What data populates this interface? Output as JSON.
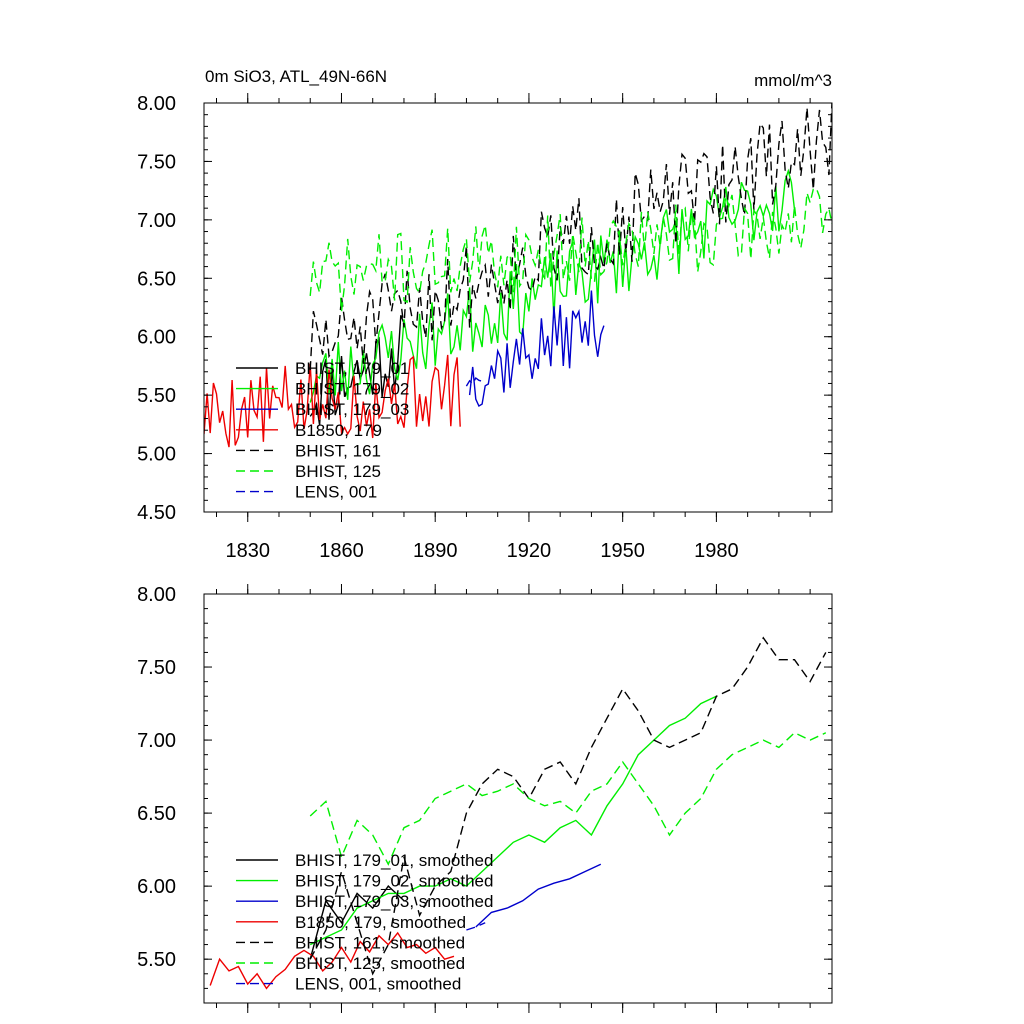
{
  "chart_data": [
    {
      "type": "line",
      "panel": "top",
      "title_left": "0m SiO3, ATL_49N-66N",
      "title_right": "mmol/m^3",
      "xlabel": "",
      "ylabel": "",
      "xlim": [
        1816,
        2017
      ],
      "ylim": [
        4.5,
        8.0
      ],
      "x_ticks": [
        1830,
        1860,
        1890,
        1920,
        1950,
        1980
      ],
      "x_tick_labels": [
        "1830",
        "1860",
        "1890",
        "1920",
        "1950",
        "1980"
      ],
      "y_ticks": [
        4.5,
        5.0,
        5.5,
        6.0,
        6.5,
        7.0,
        7.5,
        8.0
      ],
      "y_tick_labels": [
        "4.50",
        "5.00",
        "5.50",
        "6.00",
        "6.50",
        "7.00",
        "7.50",
        "8.00"
      ],
      "legend_position": "lower-left",
      "series": [
        {
          "name": "BHIST, 179_01",
          "color": "#000000",
          "dash": "solid",
          "gen": {
            "x0": 1850,
            "x1": 1880,
            "step": 1,
            "start": 5.5,
            "end": 5.9,
            "amp": 0.35,
            "seed": 11
          }
        },
        {
          "name": "BHIST, 179_02",
          "color": "#00ee00",
          "dash": "solid",
          "gen": {
            "x0": 1850,
            "x1": 2005,
            "step": 1,
            "start": 5.6,
            "end": 7.25,
            "amp": 0.32,
            "seed": 23
          }
        },
        {
          "name": "BHIST, 179_03",
          "color": "#0000cc",
          "dash": "solid",
          "gen": {
            "x0": 1901,
            "x1": 1944,
            "step": 1,
            "start": 5.65,
            "end": 6.15,
            "amp": 0.3,
            "seed": 37
          }
        },
        {
          "name": "B1850, 179",
          "color": "#ee0000",
          "dash": "solid",
          "gen": {
            "x0": 1816,
            "x1": 1898,
            "step": 1,
            "start": 5.35,
            "end": 5.55,
            "amp": 0.35,
            "seed": 5
          }
        },
        {
          "name": "BHIST, 161",
          "color": "#000000",
          "dash": "dashed",
          "gen": {
            "x0": 1850,
            "x1": 2017,
            "step": 1,
            "start": 5.9,
            "end": 7.7,
            "amp": 0.38,
            "seed": 51
          }
        },
        {
          "name": "BHIST, 125",
          "color": "#00ee00",
          "dash": "dashed",
          "gen": {
            "x0": 1850,
            "x1": 2017,
            "step": 1,
            "start": 6.5,
            "end": 7.0,
            "amp": 0.32,
            "seed": 71
          }
        },
        {
          "name": "LENS, 001",
          "color": "#0000cc",
          "dash": "dashed",
          "gen": {
            "x0": 1900,
            "x1": 1905,
            "step": 1,
            "start": 5.6,
            "end": 5.65,
            "amp": 0.05,
            "seed": 81
          }
        }
      ]
    },
    {
      "type": "line",
      "panel": "bottom",
      "title_left": "",
      "title_right": "",
      "xlabel": "",
      "ylabel": "",
      "xlim": [
        1816,
        2017
      ],
      "ylim": [
        5.2,
        8.0
      ],
      "x_ticks": [
        1830,
        1860,
        1890,
        1920,
        1950,
        1980
      ],
      "x_tick_labels": [
        "",
        "",
        "",
        "",
        "",
        ""
      ],
      "y_ticks": [
        5.5,
        6.0,
        6.5,
        7.0,
        7.5,
        8.0
      ],
      "y_tick_labels": [
        "5.50",
        "6.00",
        "6.50",
        "7.00",
        "7.50",
        "8.00"
      ],
      "legend_position": "lower-left",
      "series": [
        {
          "name": "BHIST, 179_01, smoothed",
          "color": "#000000",
          "dash": "solid",
          "x": [
            1850,
            1855,
            1860,
            1865,
            1870,
            1875,
            1880
          ],
          "y": [
            5.5,
            5.9,
            5.75,
            5.95,
            5.85,
            6.0,
            5.9
          ]
        },
        {
          "name": "BHIST, 179_02, smoothed",
          "color": "#00ee00",
          "dash": "solid",
          "x": [
            1850,
            1855,
            1860,
            1865,
            1870,
            1875,
            1880,
            1885,
            1890,
            1895,
            1900,
            1905,
            1910,
            1915,
            1920,
            1925,
            1930,
            1935,
            1940,
            1945,
            1950,
            1955,
            1960,
            1965,
            1970,
            1975,
            1980
          ],
          "y": [
            5.6,
            5.65,
            5.7,
            5.85,
            5.9,
            5.95,
            5.95,
            6.0,
            6.0,
            6.05,
            6.0,
            6.1,
            6.2,
            6.3,
            6.35,
            6.3,
            6.4,
            6.45,
            6.35,
            6.55,
            6.7,
            6.9,
            7.0,
            7.1,
            7.15,
            7.25,
            7.3
          ]
        },
        {
          "name": "BHIST, 179_03, smoothed",
          "color": "#0000cc",
          "dash": "solid",
          "x": [
            1903,
            1908,
            1913,
            1918,
            1923,
            1928,
            1933,
            1938,
            1943
          ],
          "y": [
            5.72,
            5.82,
            5.85,
            5.9,
            5.98,
            6.02,
            6.05,
            6.1,
            6.15
          ]
        },
        {
          "name": "B1850, 179, smoothed",
          "color": "#ee0000",
          "dash": "solid",
          "x": [
            1818,
            1821,
            1824,
            1827,
            1830,
            1833,
            1836,
            1839,
            1842,
            1845,
            1848,
            1851,
            1854,
            1857,
            1860,
            1863,
            1866,
            1869,
            1872,
            1875,
            1878,
            1881,
            1884,
            1887,
            1890,
            1893,
            1896
          ],
          "y": [
            5.32,
            5.5,
            5.42,
            5.45,
            5.33,
            5.4,
            5.3,
            5.38,
            5.43,
            5.52,
            5.56,
            5.52,
            5.42,
            5.48,
            5.58,
            5.48,
            5.62,
            5.55,
            5.66,
            5.6,
            5.68,
            5.58,
            5.6,
            5.54,
            5.58,
            5.5,
            5.52
          ]
        },
        {
          "name": "BHIST, 161, smoothed",
          "color": "#000000",
          "dash": "dashed",
          "x": [
            1850,
            1855,
            1860,
            1865,
            1870,
            1875,
            1880,
            1885,
            1890,
            1895,
            1900,
            1905,
            1910,
            1915,
            1920,
            1925,
            1930,
            1935,
            1940,
            1945,
            1950,
            1955,
            1960,
            1965,
            1970,
            1975,
            1980,
            1985,
            1990,
            1995,
            2000,
            2005,
            2010,
            2015
          ],
          "y": [
            5.5,
            5.7,
            6.1,
            5.75,
            5.4,
            5.6,
            6.2,
            5.8,
            6.0,
            6.1,
            6.5,
            6.7,
            6.8,
            6.75,
            6.6,
            6.8,
            6.85,
            6.7,
            6.95,
            7.15,
            7.35,
            7.2,
            7.0,
            6.95,
            7.0,
            7.05,
            7.3,
            7.35,
            7.5,
            7.7,
            7.55,
            7.55,
            7.4,
            7.6
          ]
        },
        {
          "name": "BHIST, 125, smoothed",
          "color": "#00ee00",
          "dash": "dashed",
          "x": [
            1850,
            1855,
            1860,
            1865,
            1870,
            1875,
            1880,
            1885,
            1890,
            1895,
            1900,
            1905,
            1910,
            1915,
            1920,
            1925,
            1930,
            1935,
            1940,
            1945,
            1950,
            1955,
            1960,
            1965,
            1970,
            1975,
            1980,
            1985,
            1990,
            1995,
            2000,
            2005,
            2010,
            2015
          ],
          "y": [
            6.48,
            6.58,
            6.2,
            6.45,
            6.35,
            6.15,
            6.4,
            6.45,
            6.6,
            6.65,
            6.7,
            6.62,
            6.65,
            6.7,
            6.6,
            6.55,
            6.58,
            6.5,
            6.65,
            6.7,
            6.85,
            6.7,
            6.55,
            6.35,
            6.5,
            6.6,
            6.8,
            6.9,
            6.95,
            7.0,
            6.95,
            7.05,
            7.0,
            7.05
          ]
        },
        {
          "name": "LENS, 001, smoothed",
          "color": "#0000cc",
          "dash": "dashed",
          "x": [
            1900,
            1903,
            1906
          ],
          "y": [
            5.7,
            5.72,
            5.75
          ]
        }
      ]
    }
  ]
}
